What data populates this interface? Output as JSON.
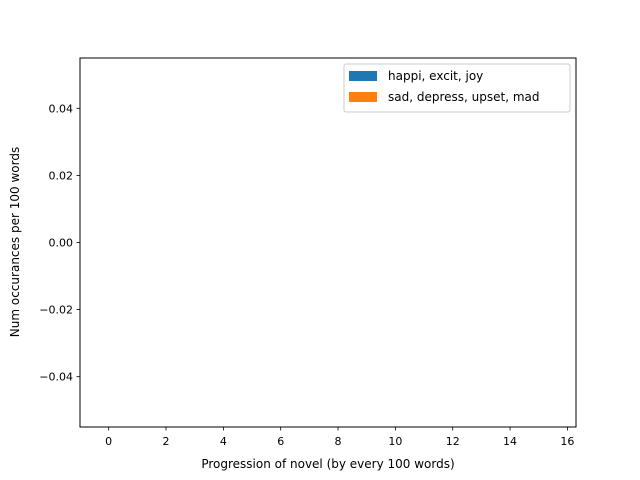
{
  "chart_data": {
    "type": "bar",
    "title": "",
    "xlabel": "Progression of novel (by every 100 words)",
    "ylabel": "Num occurances per 100 words",
    "xlim": [
      -1,
      16.3
    ],
    "ylim": [
      -0.055,
      0.055
    ],
    "xticks": [
      0,
      2,
      4,
      6,
      8,
      10,
      12,
      14,
      16
    ],
    "xtick_labels": [
      "0",
      "2",
      "4",
      "6",
      "8",
      "10",
      "12",
      "14",
      "16"
    ],
    "yticks": [
      -0.04,
      -0.02,
      0.0,
      0.02,
      0.04
    ],
    "ytick_labels": [
      "−0.04",
      "−0.02",
      "0.00",
      "0.02",
      "0.04"
    ],
    "grid": false,
    "legend_position": "top-right",
    "series": [
      {
        "name": "happi, excit, joy",
        "color": "#1f77b4",
        "x": [],
        "values": []
      },
      {
        "name": "sad, depress, upset, mad",
        "color": "#ff7f0e",
        "x": [],
        "values": []
      }
    ]
  }
}
